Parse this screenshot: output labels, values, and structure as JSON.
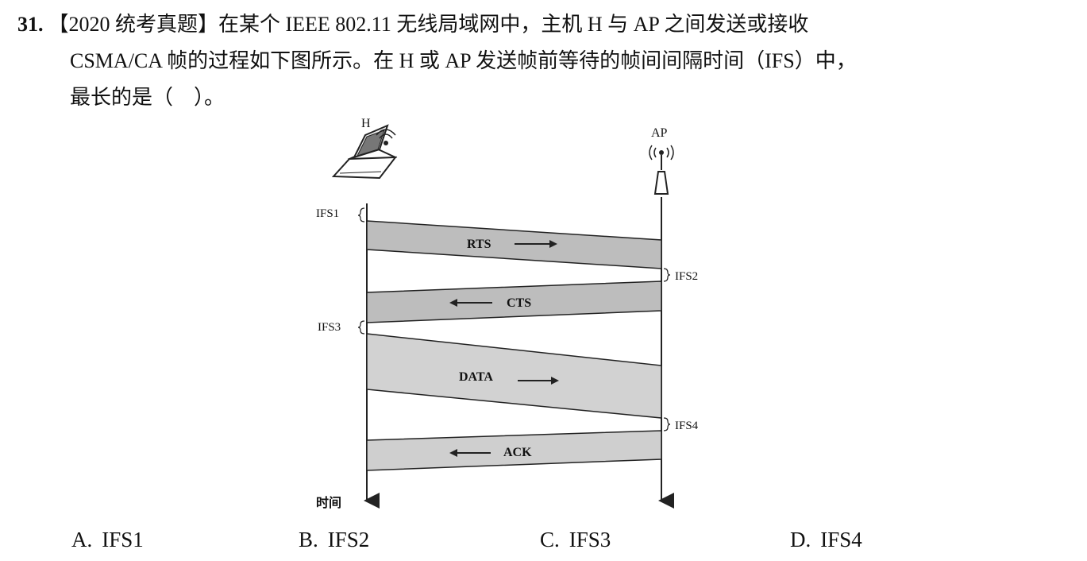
{
  "question": {
    "number": "31.",
    "line1": "【2020 统考真题】在某个 IEEE 802.11 无线局域网中，主机 H 与 AP 之间发送或接收",
    "line2": "CSMA/CA 帧的过程如下图所示。在 H 或 AP 发送帧前等待的帧间间隔时间（IFS）中，",
    "line3": "最长的是（　）。"
  },
  "diagram": {
    "host_label": "H",
    "ap_label": "AP",
    "time_label": "时间",
    "ifs_labels": {
      "ifs1": "IFS1",
      "ifs2": "IFS2",
      "ifs3": "IFS3",
      "ifs4": "IFS4"
    },
    "frames": {
      "rts": "RTS",
      "cts": "CTS",
      "data": "DATA",
      "ack": "ACK"
    },
    "colors": {
      "frame_fill": "#bdbdbd",
      "line": "#222222"
    }
  },
  "options": [
    {
      "letter": "A.",
      "text": "IFS1"
    },
    {
      "letter": "B.",
      "text": "IFS2"
    },
    {
      "letter": "C.",
      "text": "IFS3"
    },
    {
      "letter": "D.",
      "text": "IFS4"
    }
  ]
}
